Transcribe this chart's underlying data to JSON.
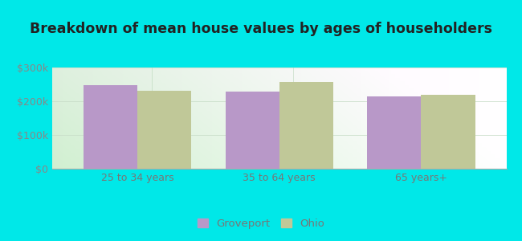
{
  "title": "Breakdown of mean house values by ages of householders",
  "categories": [
    "25 to 34 years",
    "35 to 64 years",
    "65 years+"
  ],
  "groveport_values": [
    248000,
    228000,
    215000
  ],
  "ohio_values": [
    232000,
    258000,
    220000
  ],
  "groveport_color": "#b898c8",
  "ohio_color": "#c0c898",
  "background_color": "#00e8e8",
  "ylim": [
    0,
    300000
  ],
  "yticks": [
    0,
    100000,
    200000,
    300000
  ],
  "ytick_labels": [
    "$0",
    "$100k",
    "$200k",
    "$300k"
  ],
  "legend_labels": [
    "Groveport",
    "Ohio"
  ],
  "bar_width": 0.38,
  "title_fontsize": 12.5,
  "tick_fontsize": 9,
  "legend_fontsize": 9.5
}
